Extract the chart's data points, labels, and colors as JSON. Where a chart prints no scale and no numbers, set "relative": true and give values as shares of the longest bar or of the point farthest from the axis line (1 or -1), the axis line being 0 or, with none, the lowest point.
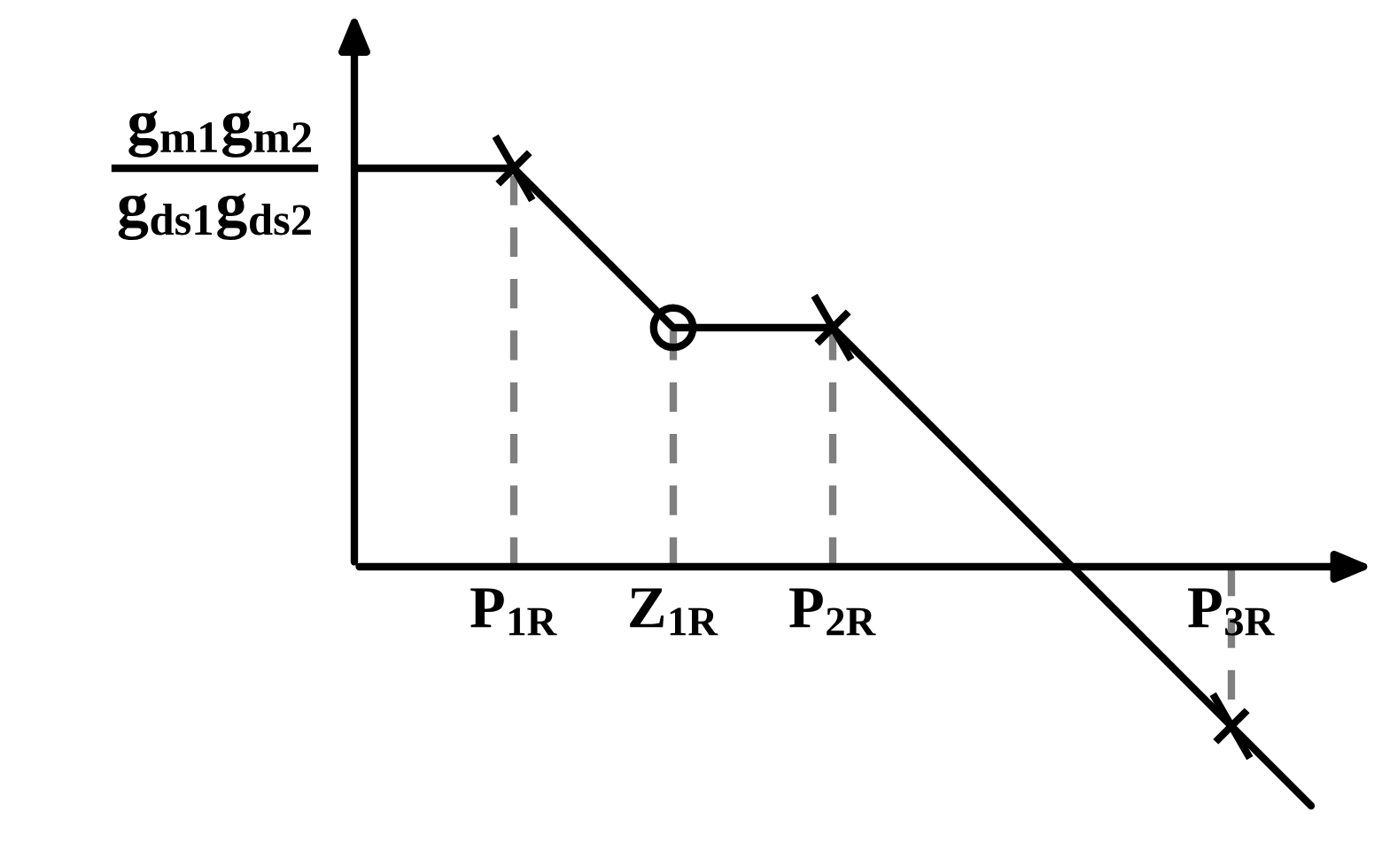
{
  "chart_data": {
    "type": "line",
    "relative": true,
    "categories": [
      null,
      null,
      "P$_{1R}$",
      null,
      "Z$_{1R}$",
      null,
      "P$_{2R}$",
      null,
      null,
      null,
      null,
      "P$_{3R}$",
      null
    ],
    "annotations": [
      "g$_{m1}$g$_{m2}$",
      "g$_{ds1}$g$_{ds2}$"
    ],
    "series": [
      {
        "color": "#000000",
        "values": [
          1,
          1,
          1,
          0.8,
          0.6,
          0.6,
          0.6,
          0.4,
          0.2,
          0,
          -0.2,
          -0.4,
          -0.6
        ]
      },
      {
        "type": "lollipop",
        "color": "#000000",
        "x": [
          "P$_{1R}$",
          "P$_{2R}$",
          "P$_{3R}$"
        ],
        "values": [
          1,
          0.6,
          -0.4
        ],
        "marker": "cross",
        "line_style": "dashed"
      },
      {
        "type": "lollipop",
        "color": "#000000",
        "x": [
          "Z$_{1R}$"
        ],
        "values": [
          0.6
        ],
        "marker": "circle",
        "line_style": "dashed"
      }
    ]
  }
}
